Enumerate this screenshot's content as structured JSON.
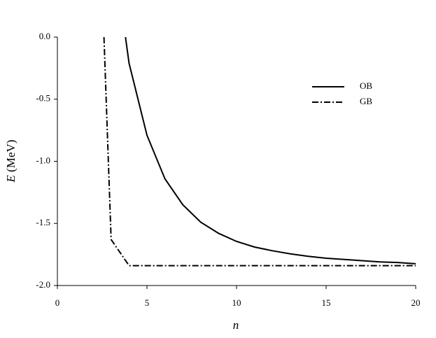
{
  "chart_data": {
    "type": "line",
    "xlabel": "n",
    "ylabel": {
      "symbol": "E",
      "unit": "(MeV)"
    },
    "xlim": [
      0,
      20
    ],
    "ylim": [
      -2.0,
      0.0
    ],
    "xticks": [
      0,
      5,
      10,
      15,
      20
    ],
    "yticks": [
      {
        "value": 0,
        "label": "0.0"
      },
      {
        "value": -0.5,
        "label": "-0.5"
      },
      {
        "value": -1,
        "label": "-1.0"
      },
      {
        "value": -1.5,
        "label": "-1.5"
      },
      {
        "value": -2,
        "label": "-2.0"
      }
    ],
    "series": [
      {
        "name": "OB",
        "color": "#000000",
        "dash": "solid",
        "x": [
          3.8,
          4,
          5,
          6,
          7,
          8,
          9,
          10,
          11,
          12,
          13,
          14,
          15,
          16,
          17,
          18,
          19,
          20
        ],
        "values": [
          0.0,
          -0.21,
          -0.79,
          -1.14,
          -1.35,
          -1.49,
          -1.58,
          -1.645,
          -1.69,
          -1.72,
          -1.745,
          -1.765,
          -1.78,
          -1.79,
          -1.8,
          -1.81,
          -1.815,
          -1.825
        ]
      },
      {
        "name": "GB",
        "color": "#000000",
        "dash": "dashdot",
        "x": [
          2.6,
          3,
          4,
          20
        ],
        "values": [
          0.0,
          -1.63,
          -1.84,
          -1.84
        ]
      }
    ]
  }
}
